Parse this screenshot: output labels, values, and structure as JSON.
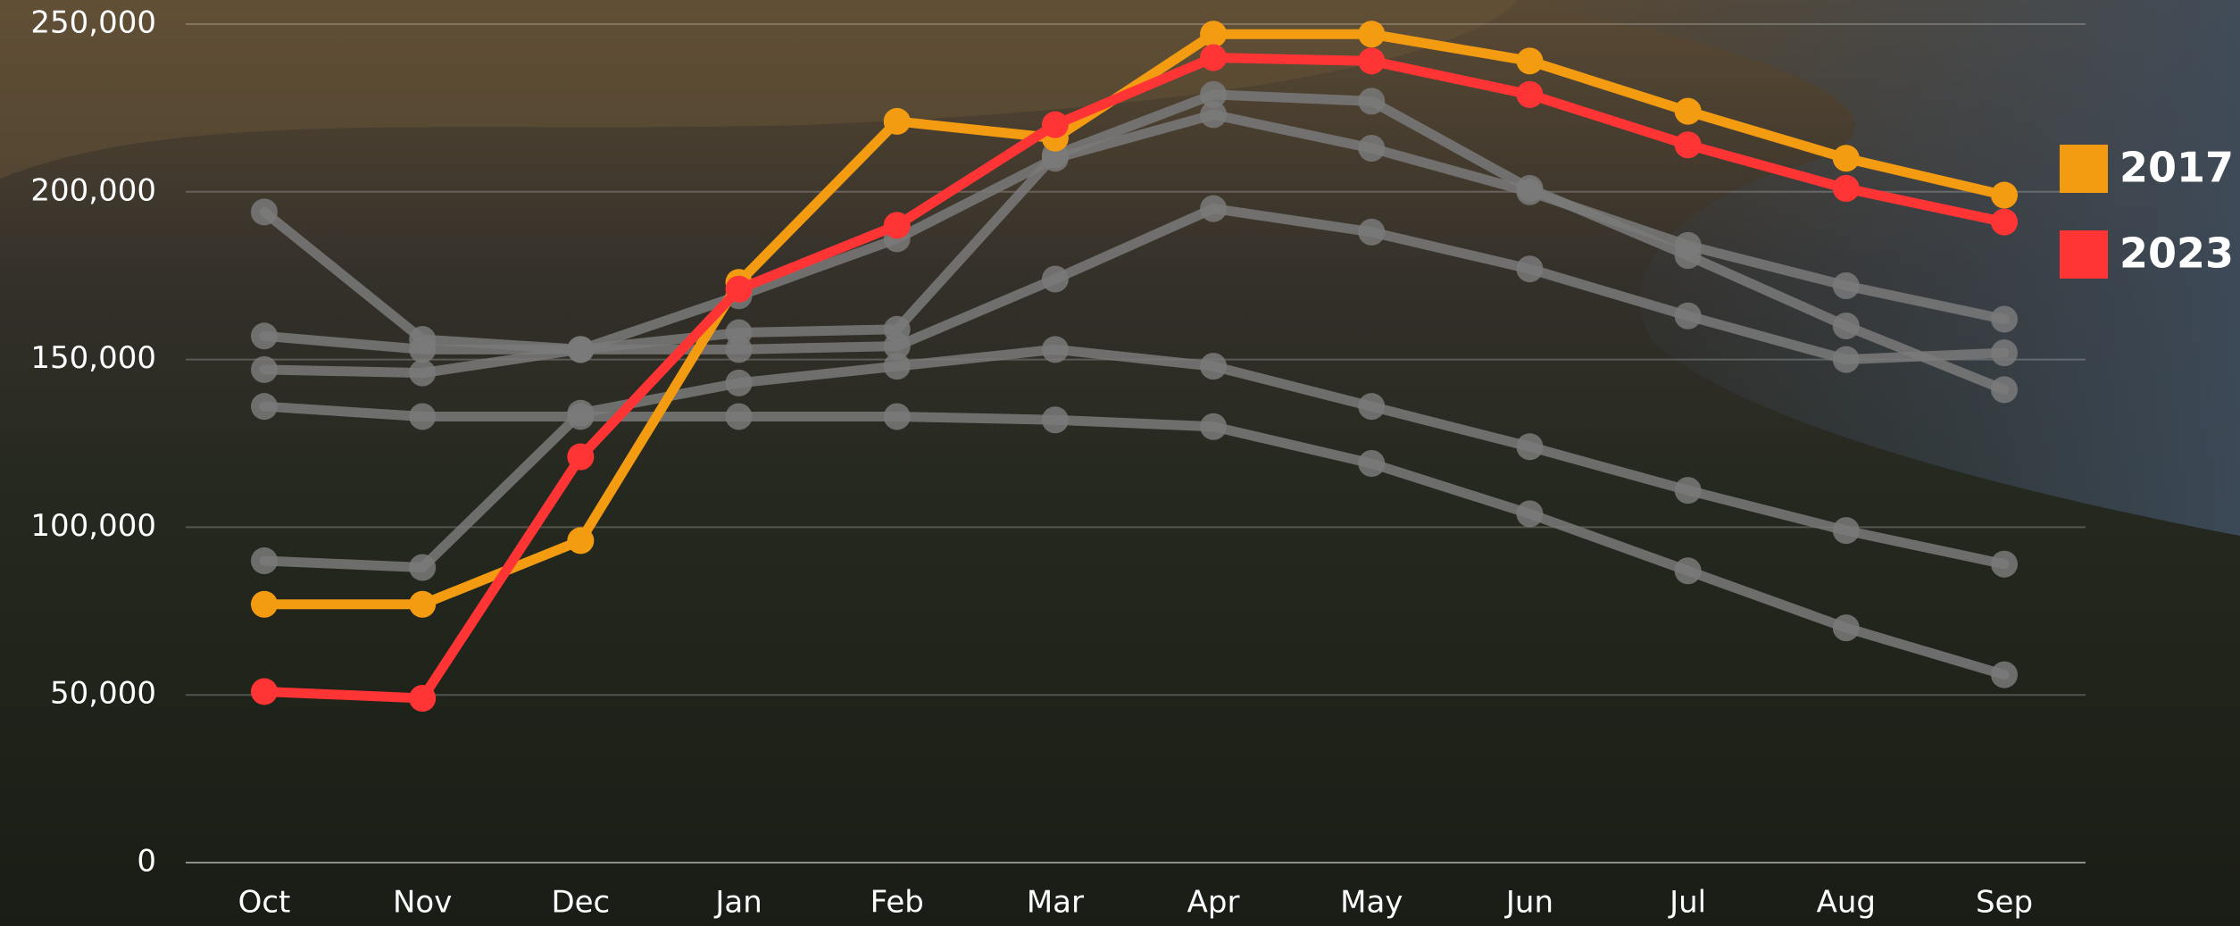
{
  "chart_data": {
    "type": "line",
    "categories": [
      "Oct",
      "Nov",
      "Dec",
      "Jan",
      "Feb",
      "Mar",
      "Apr",
      "May",
      "Jun",
      "Jul",
      "Aug",
      "Sep"
    ],
    "ylim": [
      0,
      250000
    ],
    "yticks": [
      0,
      {
        "value": 50000,
        "label": "50,000"
      },
      {
        "value": 100000,
        "label": "100,000"
      },
      {
        "value": 150000,
        "label": "150,000"
      },
      {
        "value": 200000,
        "label": "200,000"
      },
      {
        "value": 250000,
        "label": "250,000"
      }
    ],
    "grid": true,
    "legend": "right",
    "series": [
      {
        "color": "#7a7a7a",
        "values": [
          194000,
          156000,
          153000,
          158000,
          159000,
          211000,
          229000,
          227000,
          201000,
          181000,
          160000,
          141000
        ]
      },
      {
        "color": "#7a7a7a",
        "values": [
          157000,
          153000,
          153000,
          169000,
          186000,
          210000,
          223000,
          213000,
          200000,
          184000,
          172000,
          162000
        ]
      },
      {
        "color": "#7a7a7a",
        "values": [
          147000,
          146000,
          153000,
          153000,
          154000,
          174000,
          195000,
          188000,
          177000,
          163000,
          150000,
          152000
        ]
      },
      {
        "color": "#7a7a7a",
        "values": [
          90000,
          88000,
          134000,
          143000,
          148000,
          153000,
          148000,
          136000,
          124000,
          111000,
          99000,
          89000
        ]
      },
      {
        "color": "#7a7a7a",
        "values": [
          136000,
          133000,
          133000,
          133000,
          133000,
          132000,
          130000,
          119000,
          104000,
          87000,
          70000,
          56000
        ]
      },
      {
        "name": "2017",
        "color": "#f39c12",
        "values": [
          77000,
          77000,
          96000,
          173000,
          221000,
          216000,
          247000,
          247000,
          239000,
          224000,
          210000,
          199000
        ]
      },
      {
        "name": "2023",
        "color": "#ff3535",
        "values": [
          51000,
          49000,
          121000,
          171000,
          190000,
          220000,
          240000,
          239000,
          229000,
          214000,
          201000,
          191000
        ]
      }
    ]
  }
}
